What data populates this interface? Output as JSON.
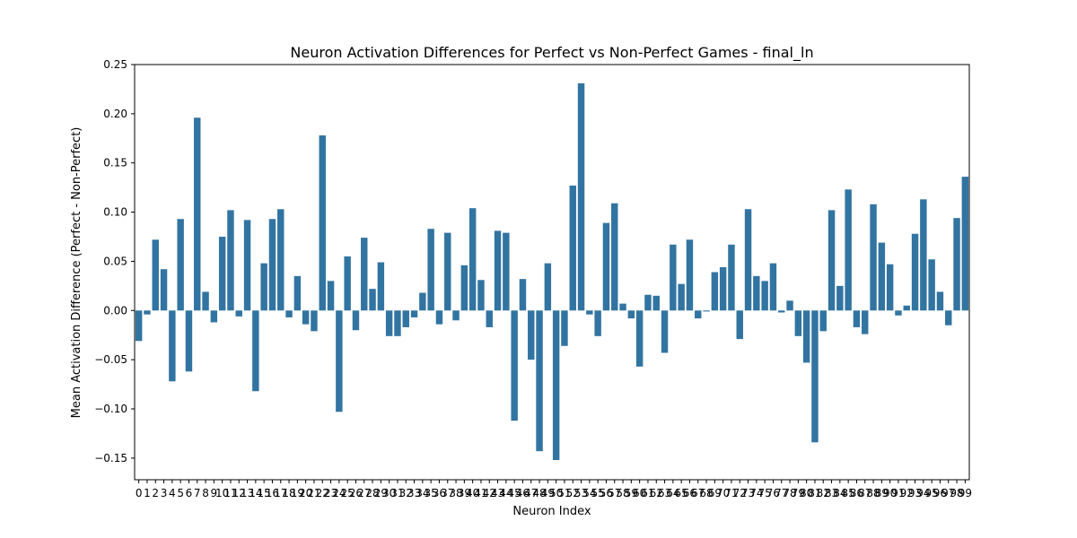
{
  "chart_data": {
    "type": "bar",
    "title": "Neuron Activation Differences for Perfect vs Non-Perfect Games - final_ln",
    "xlabel": "Neuron Index",
    "ylabel": "Mean Activation Difference (Perfect - Non-Perfect)",
    "ylim": [
      -0.172,
      0.25
    ],
    "yticks": [
      -0.15,
      -0.1,
      -0.05,
      0.0,
      0.05,
      0.1,
      0.15,
      0.2,
      0.25
    ],
    "ytick_labels": [
      "−0.15",
      "−0.10",
      "−0.05",
      "0.00",
      "0.05",
      "0.10",
      "0.15",
      "0.20",
      "0.25"
    ],
    "grid": false,
    "bar_color": "#3274a1",
    "categories": [
      "0",
      "1",
      "2",
      "3",
      "4",
      "5",
      "6",
      "7",
      "8",
      "9",
      "10",
      "11",
      "12",
      "13",
      "14",
      "15",
      "16",
      "17",
      "18",
      "19",
      "20",
      "21",
      "22",
      "23",
      "24",
      "25",
      "26",
      "27",
      "28",
      "29",
      "30",
      "31",
      "32",
      "33",
      "34",
      "35",
      "36",
      "37",
      "38",
      "39",
      "40",
      "41",
      "42",
      "43",
      "44",
      "45",
      "46",
      "47",
      "48",
      "49",
      "50",
      "51",
      "52",
      "53",
      "54",
      "55",
      "56",
      "57",
      "58",
      "59",
      "60",
      "61",
      "62",
      "63",
      "64",
      "65",
      "66",
      "67",
      "68",
      "69",
      "70",
      "71",
      "72",
      "73",
      "74",
      "75",
      "76",
      "77",
      "78",
      "79",
      "80",
      "81",
      "82",
      "83",
      "84",
      "85",
      "86",
      "87",
      "88",
      "89",
      "90",
      "91",
      "92",
      "93",
      "94",
      "95",
      "96",
      "97",
      "98",
      "99"
    ],
    "values": [
      -0.031,
      -0.004,
      0.072,
      0.042,
      -0.072,
      0.093,
      -0.062,
      0.196,
      0.019,
      -0.012,
      0.075,
      0.102,
      -0.006,
      0.092,
      -0.082,
      0.048,
      0.093,
      0.103,
      -0.007,
      0.035,
      -0.014,
      -0.021,
      0.178,
      0.03,
      -0.103,
      0.055,
      -0.02,
      0.074,
      0.022,
      0.049,
      -0.026,
      -0.026,
      -0.017,
      -0.007,
      0.018,
      0.083,
      -0.014,
      0.079,
      -0.01,
      0.046,
      0.104,
      0.031,
      -0.017,
      0.081,
      0.079,
      -0.112,
      0.032,
      -0.05,
      -0.143,
      0.048,
      -0.152,
      -0.036,
      0.127,
      0.231,
      -0.004,
      -0.026,
      0.089,
      0.109,
      0.007,
      -0.008,
      -0.057,
      0.016,
      0.015,
      -0.043,
      0.067,
      0.027,
      0.072,
      -0.008,
      -0.001,
      0.039,
      0.044,
      0.067,
      -0.029,
      0.103,
      0.035,
      0.03,
      0.048,
      -0.002,
      0.01,
      -0.026,
      -0.053,
      -0.134,
      -0.021,
      0.102,
      0.025,
      0.123,
      -0.017,
      -0.024,
      0.108,
      0.069,
      0.047,
      -0.005,
      0.005,
      0.078,
      0.113,
      0.052,
      0.019,
      -0.015,
      0.094,
      0.136
    ]
  }
}
